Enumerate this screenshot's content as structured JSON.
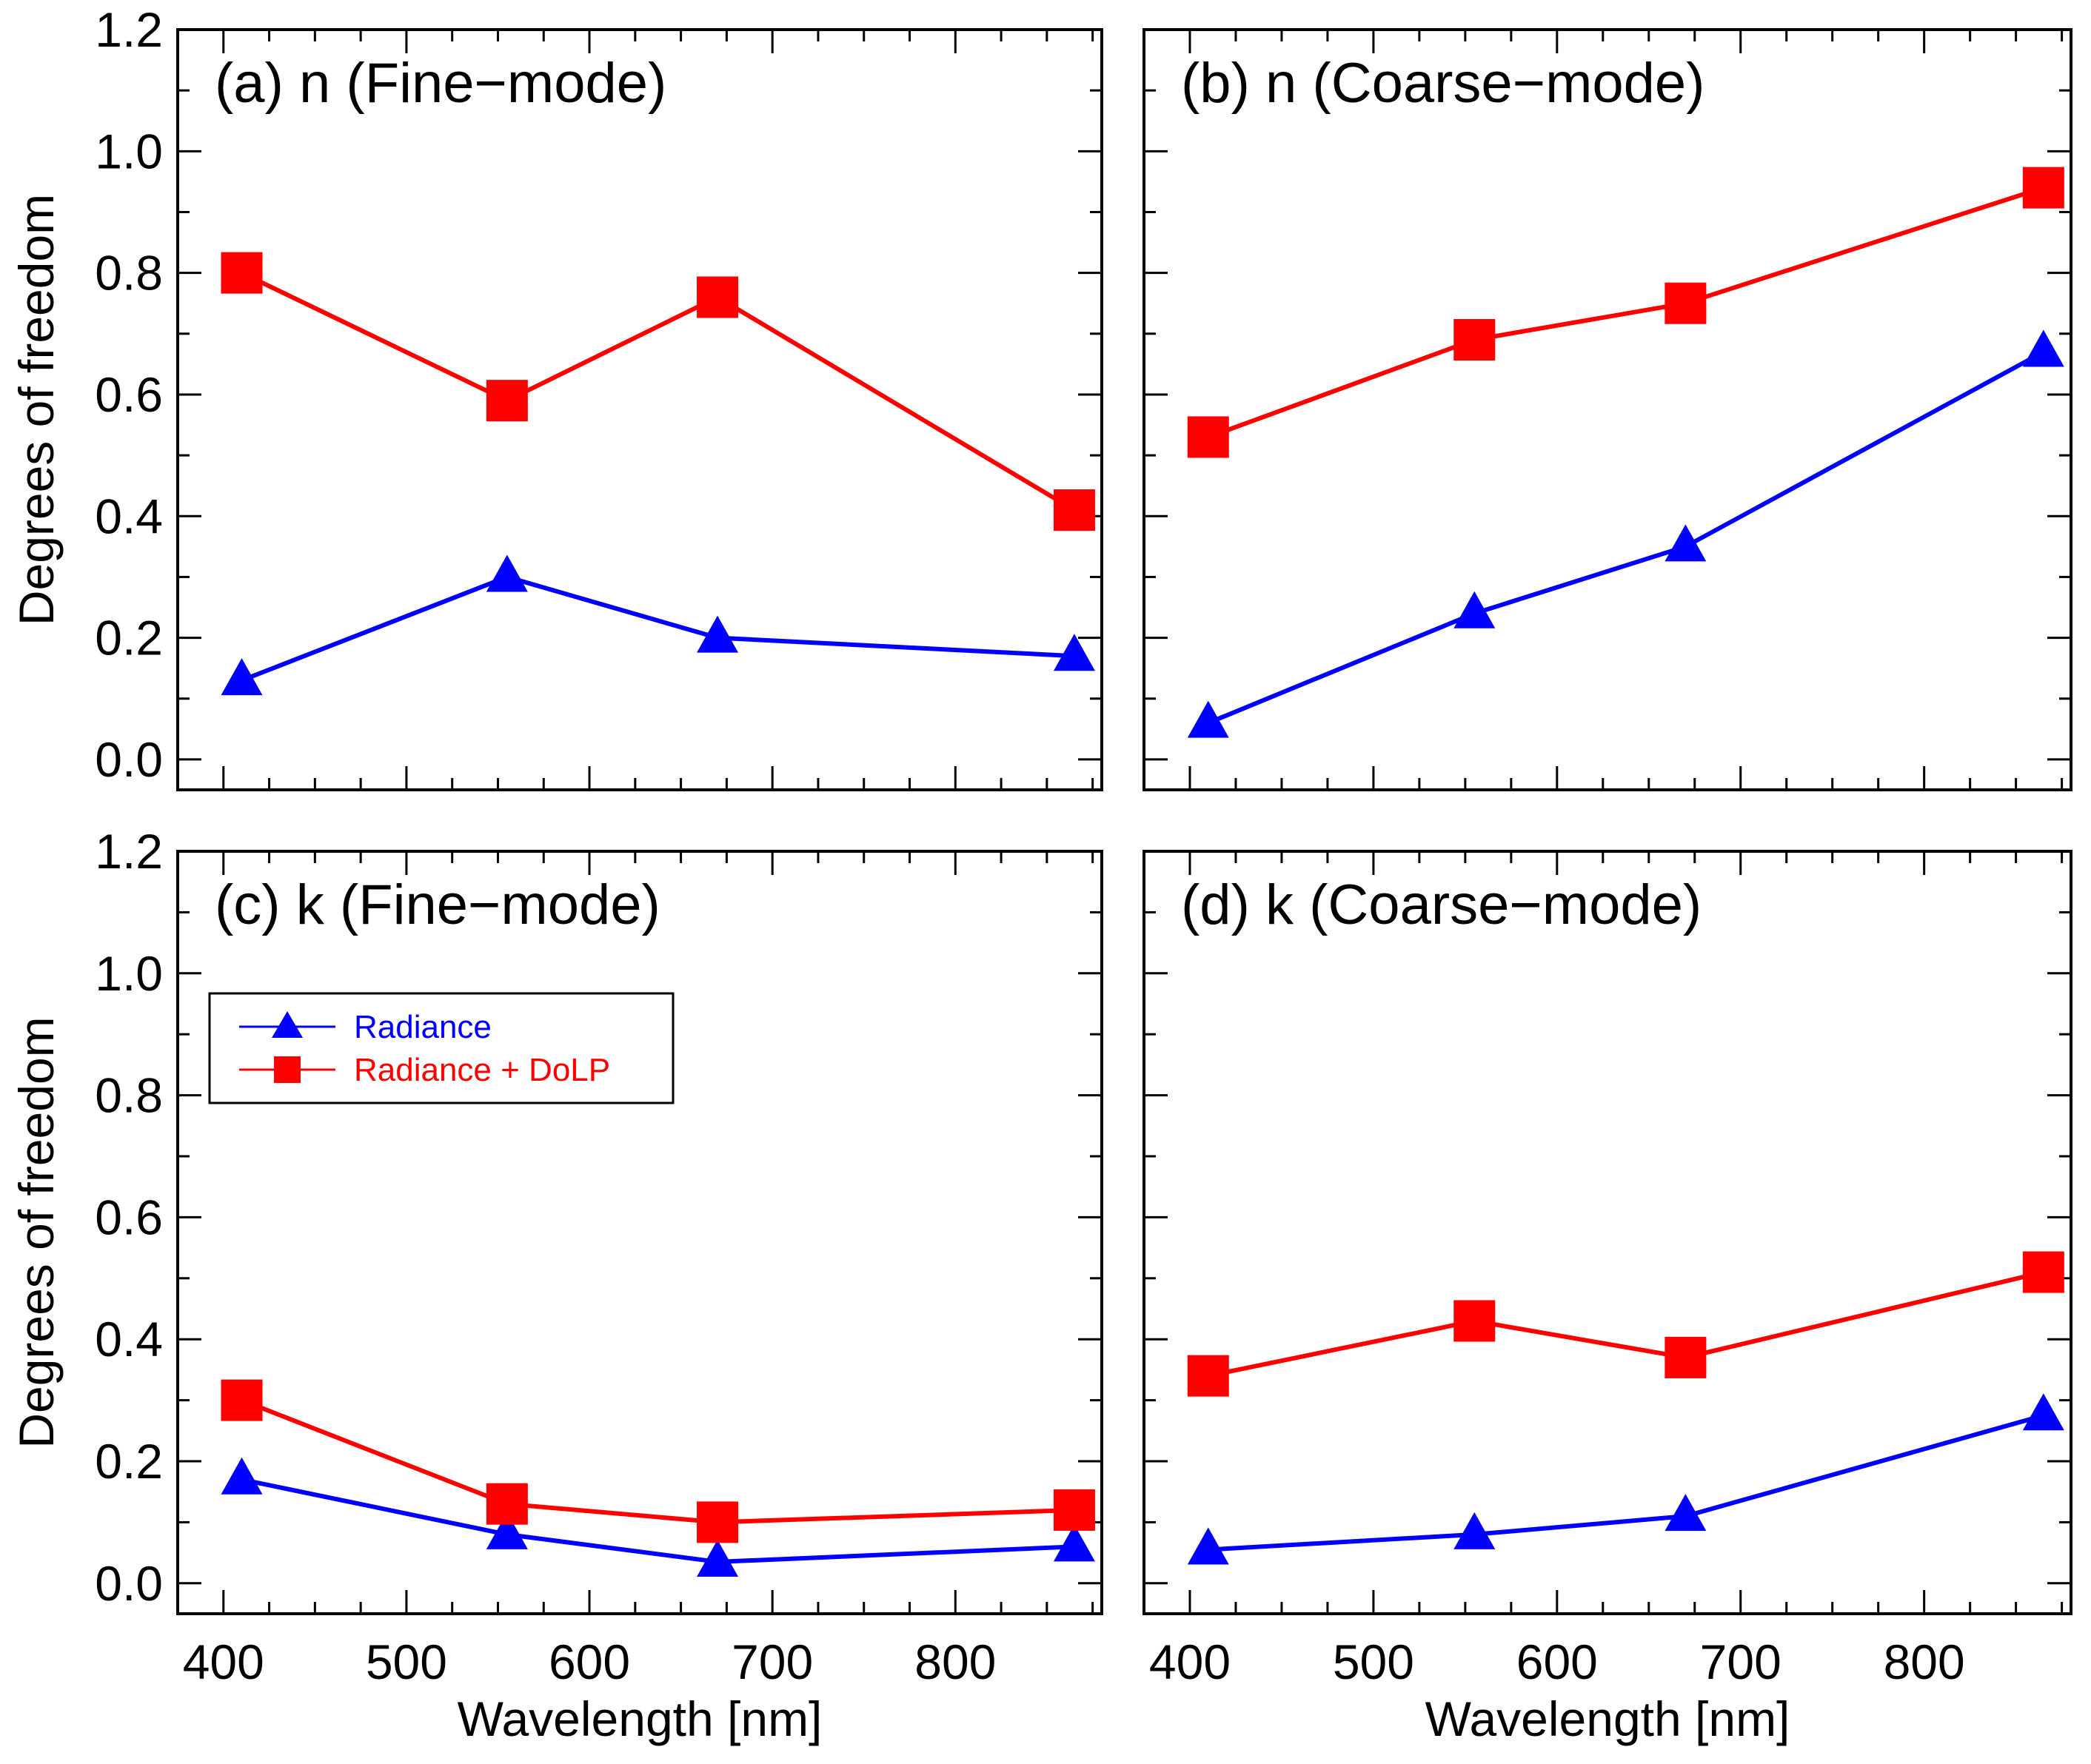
{
  "colors": {
    "radiance": "#0000ff",
    "radiance_dolp": "#ff0000",
    "axes": "#000000"
  },
  "legend": {
    "entries": [
      {
        "label": "Radiance",
        "marker": "triangle",
        "color": "#0000ff"
      },
      {
        "label": "Radiance + DoLP",
        "marker": "square",
        "color": "#ff0000"
      }
    ]
  },
  "chart_data": [
    {
      "type": "line",
      "title": "(a) n (Fine−mode)",
      "xlabel": "",
      "ylabel": "Degrees of freedom",
      "xlim": [
        375,
        880
      ],
      "ylim": [
        -0.05,
        1.2
      ],
      "x": [
        410,
        555,
        670,
        865
      ],
      "series": [
        {
          "name": "Radiance",
          "values": [
            0.13,
            0.3,
            0.2,
            0.17
          ]
        },
        {
          "name": "Radiance + DoLP",
          "values": [
            0.8,
            0.59,
            0.76,
            0.41
          ]
        }
      ]
    },
    {
      "type": "line",
      "title": "(b) n (Coarse−mode)",
      "xlabel": "",
      "ylabel": "",
      "xlim": [
        375,
        880
      ],
      "ylim": [
        -0.05,
        1.2
      ],
      "x": [
        410,
        555,
        670,
        865
      ],
      "series": [
        {
          "name": "Radiance",
          "values": [
            0.06,
            0.24,
            0.35,
            0.67
          ]
        },
        {
          "name": "Radiance + DoLP",
          "values": [
            0.53,
            0.69,
            0.75,
            0.94
          ]
        }
      ]
    },
    {
      "type": "line",
      "title": "(c) k (Fine−mode)",
      "xlabel": "Wavelength [nm]",
      "ylabel": "Degrees of freedom",
      "xlim": [
        375,
        880
      ],
      "ylim": [
        -0.05,
        1.2
      ],
      "x": [
        410,
        555,
        670,
        865
      ],
      "series": [
        {
          "name": "Radiance",
          "values": [
            0.17,
            0.08,
            0.035,
            0.06
          ]
        },
        {
          "name": "Radiance + DoLP",
          "values": [
            0.3,
            0.13,
            0.1,
            0.12
          ]
        }
      ]
    },
    {
      "type": "line",
      "title": "(d) k (Coarse−mode)",
      "xlabel": "Wavelength [nm]",
      "ylabel": "",
      "xlim": [
        375,
        880
      ],
      "ylim": [
        -0.05,
        1.2
      ],
      "x": [
        410,
        555,
        670,
        865
      ],
      "series": [
        {
          "name": "Radiance",
          "values": [
            0.055,
            0.08,
            0.11,
            0.275
          ]
        },
        {
          "name": "Radiance + DoLP",
          "values": [
            0.34,
            0.43,
            0.37,
            0.51
          ]
        }
      ]
    }
  ],
  "axes": {
    "y_ticks": [
      "0.0",
      "0.2",
      "0.4",
      "0.6",
      "0.8",
      "1.0",
      "1.2"
    ],
    "x_ticks": [
      "400",
      "500",
      "600",
      "700",
      "800"
    ]
  }
}
